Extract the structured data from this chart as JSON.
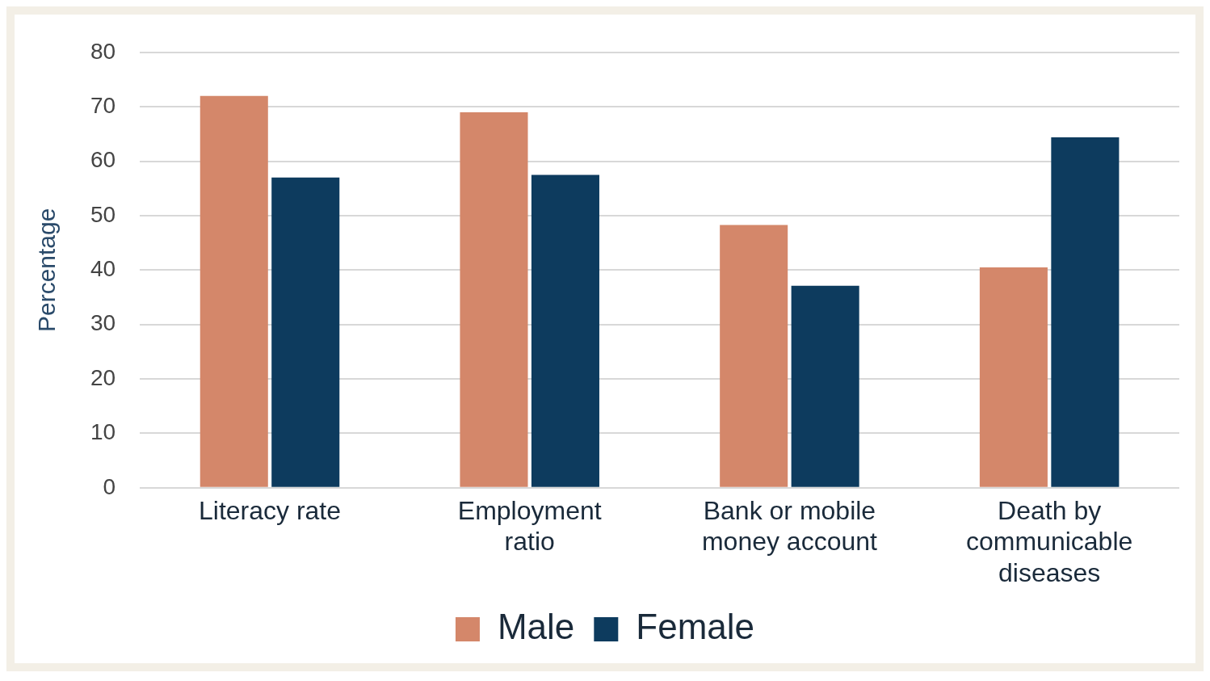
{
  "chart_data": {
    "type": "bar",
    "ylabel": "Percentage",
    "categories": [
      "Literacy rate",
      "Employment ratio",
      "Bank or mobile money account",
      "Death by communicable diseases"
    ],
    "series": [
      {
        "name": "Male",
        "color": "#d4876a",
        "values": [
          72,
          69,
          48.3,
          40.5
        ]
      },
      {
        "name": "Female",
        "color": "#0d3b5e",
        "values": [
          57,
          57.5,
          37.1,
          64.4
        ]
      }
    ],
    "ylim": [
      0,
      80
    ],
    "yticks": [
      0,
      10,
      20,
      30,
      40,
      50,
      60,
      70,
      80
    ],
    "grid": "y",
    "legend": "bottom"
  }
}
